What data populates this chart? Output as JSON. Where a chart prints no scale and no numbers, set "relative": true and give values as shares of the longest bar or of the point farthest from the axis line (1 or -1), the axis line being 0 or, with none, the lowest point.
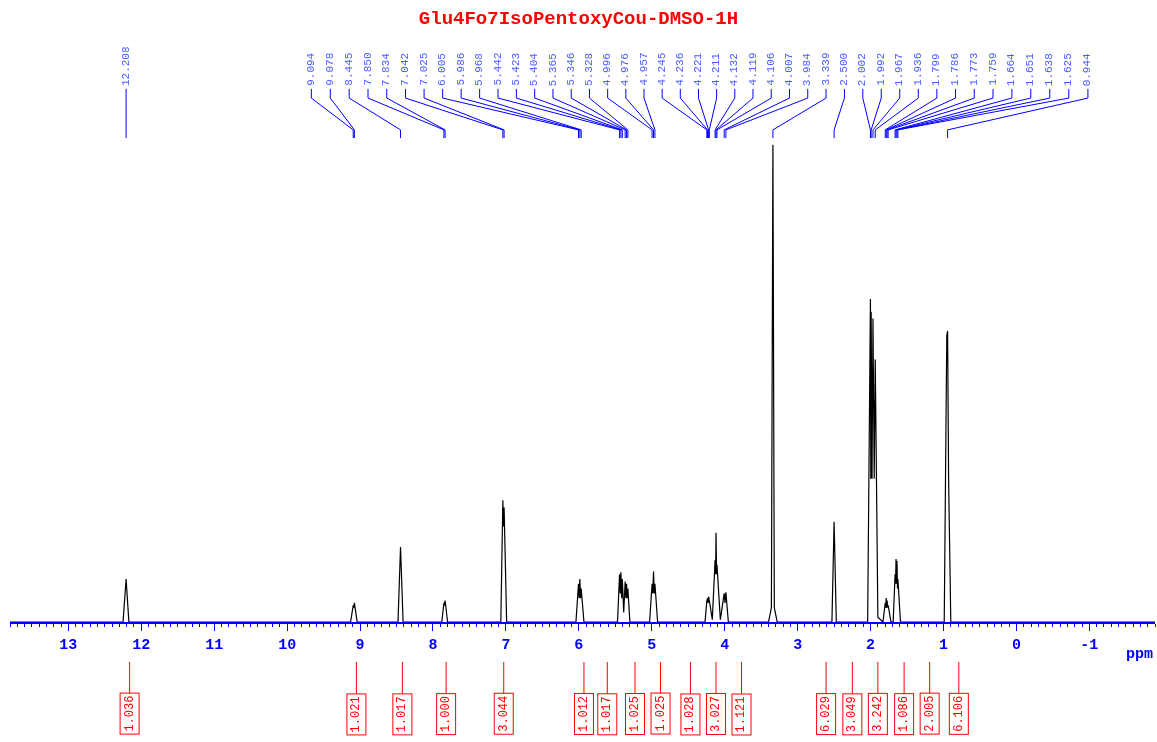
{
  "chart_data": {
    "type": "line",
    "title": "Glu4Fo7IsoPentoxyCou-DMSO-1H",
    "xlabel": "ppm",
    "relative": true,
    "xlim": [
      13.8,
      -1.9
    ],
    "xticks": [
      13,
      12,
      11,
      10,
      9,
      8,
      7,
      6,
      5,
      4,
      3,
      2,
      1,
      0,
      -1
    ],
    "marker": "none",
    "line_style": "solid",
    "series": [
      {
        "color": "#000000",
        "x": [
          13.8,
          12.25,
          12.208,
          12.17,
          9.13,
          9.094,
          9.086,
          9.078,
          9.04,
          8.48,
          8.445,
          8.41,
          7.88,
          7.85,
          7.842,
          7.834,
          7.8,
          7.07,
          7.042,
          7.034,
          7.025,
          6.99,
          6.04,
          6.005,
          5.996,
          5.986,
          5.977,
          5.968,
          5.93,
          5.47,
          5.442,
          5.432,
          5.423,
          5.413,
          5.404,
          5.385,
          5.365,
          5.355,
          5.346,
          5.337,
          5.328,
          5.3,
          5.03,
          4.996,
          4.986,
          4.976,
          4.966,
          4.957,
          4.92,
          4.27,
          4.245,
          4.236,
          4.228,
          4.221,
          4.211,
          4.17,
          4.132,
          4.125,
          4.119,
          4.112,
          4.106,
          4.06,
          4.007,
          3.996,
          3.984,
          3.95,
          3.4,
          3.36,
          3.339,
          3.32,
          3.28,
          2.53,
          2.5,
          2.47,
          2.04,
          2.002,
          1.997,
          1.992,
          1.98,
          1.967,
          1.95,
          1.936,
          1.9,
          1.83,
          1.799,
          1.793,
          1.786,
          1.78,
          1.773,
          1.766,
          1.759,
          1.72,
          1.69,
          1.664,
          1.657,
          1.651,
          1.644,
          1.638,
          1.631,
          1.625,
          1.59,
          0.99,
          0.955,
          0.944,
          0.93,
          0.9,
          -1.9
        ],
        "values": [
          0,
          0,
          0.09,
          0,
          0,
          0.035,
          0.03,
          0.04,
          0,
          0,
          0.157,
          0,
          0,
          0.04,
          0.035,
          0.045,
          0,
          0,
          0.255,
          0.2,
          0.24,
          0,
          0,
          0.08,
          0.05,
          0.09,
          0.05,
          0.07,
          0,
          0,
          0.1,
          0.06,
          0.104,
          0.05,
          0.09,
          0.02,
          0.085,
          0.05,
          0.08,
          0.05,
          0.07,
          0,
          0,
          0.08,
          0.06,
          0.106,
          0.06,
          0.08,
          0,
          0,
          0.045,
          0.05,
          0.04,
          0.053,
          0.045,
          0.005,
          0.13,
          0.1,
          0.187,
          0.1,
          0.12,
          0.005,
          0.06,
          0.04,
          0.062,
          0,
          0,
          0.03,
          1.0,
          0.03,
          0,
          0,
          0.21,
          0,
          0,
          0.677,
          0.3,
          0.65,
          0.3,
          0.636,
          0.3,
          0.55,
          0.01,
          0,
          0.04,
          0.03,
          0.05,
          0.03,
          0.045,
          0.03,
          0.035,
          0,
          0,
          0.1,
          0.08,
          0.132,
          0.08,
          0.128,
          0.07,
          0.09,
          0,
          0,
          0.6,
          0.61,
          0.3,
          0,
          0
        ]
      }
    ],
    "annotations": [
      {
        "text": "12.208",
        "x": 12.208
      },
      {
        "text": "9.094",
        "x": 9.094
      },
      {
        "text": "9.078",
        "x": 9.078
      },
      {
        "text": "8.445",
        "x": 8.445
      },
      {
        "text": "7.850",
        "x": 7.85
      },
      {
        "text": "7.834",
        "x": 7.834
      },
      {
        "text": "7.042",
        "x": 7.042
      },
      {
        "text": "7.025",
        "x": 7.025
      },
      {
        "text": "6.005",
        "x": 6.005
      },
      {
        "text": "5.986",
        "x": 5.986
      },
      {
        "text": "5.968",
        "x": 5.968
      },
      {
        "text": "5.442",
        "x": 5.442
      },
      {
        "text": "5.423",
        "x": 5.423
      },
      {
        "text": "5.404",
        "x": 5.404
      },
      {
        "text": "5.365",
        "x": 5.365
      },
      {
        "text": "5.346",
        "x": 5.346
      },
      {
        "text": "5.328",
        "x": 5.328
      },
      {
        "text": "4.996",
        "x": 4.996
      },
      {
        "text": "4.976",
        "x": 4.976
      },
      {
        "text": "4.957",
        "x": 4.957
      },
      {
        "text": "4.245",
        "x": 4.245
      },
      {
        "text": "4.236",
        "x": 4.236
      },
      {
        "text": "4.221",
        "x": 4.221
      },
      {
        "text": "4.211",
        "x": 4.211
      },
      {
        "text": "4.132",
        "x": 4.132
      },
      {
        "text": "4.119",
        "x": 4.119
      },
      {
        "text": "4.106",
        "x": 4.106
      },
      {
        "text": "4.007",
        "x": 4.007
      },
      {
        "text": "3.984",
        "x": 3.984
      },
      {
        "text": "3.339",
        "x": 3.339
      },
      {
        "text": "2.500",
        "x": 2.5
      },
      {
        "text": "2.002",
        "x": 2.002
      },
      {
        "text": "1.992",
        "x": 1.992
      },
      {
        "text": "1.967",
        "x": 1.967
      },
      {
        "text": "1.936",
        "x": 1.936
      },
      {
        "text": "1.799",
        "x": 1.799
      },
      {
        "text": "1.786",
        "x": 1.786
      },
      {
        "text": "1.773",
        "x": 1.773
      },
      {
        "text": "1.759",
        "x": 1.759
      },
      {
        "text": "1.664",
        "x": 1.664
      },
      {
        "text": "1.651",
        "x": 1.651
      },
      {
        "text": "1.638",
        "x": 1.638
      },
      {
        "text": "1.625",
        "x": 1.625
      },
      {
        "text": "0.944",
        "x": 0.944
      },
      {
        "text": "1.036",
        "x": 12.16,
        "y": 0
      },
      {
        "text": "1.021",
        "x": 9.05,
        "y": 0
      },
      {
        "text": "1.017",
        "x": 8.42,
        "y": 0
      },
      {
        "text": "1.000",
        "x": 7.82,
        "y": 0
      },
      {
        "text": "3.044",
        "x": 7.03,
        "y": 0
      },
      {
        "text": "1.012",
        "x": 5.93,
        "y": 0
      },
      {
        "text": "1.017",
        "x": 5.61,
        "y": 0
      },
      {
        "text": "1.025",
        "x": 5.23,
        "y": 0
      },
      {
        "text": "1.025",
        "x": 4.88,
        "y": 0
      },
      {
        "text": "1.028",
        "x": 4.47,
        "y": 0
      },
      {
        "text": "3.027",
        "x": 4.12,
        "y": 0
      },
      {
        "text": "1.121",
        "x": 3.77,
        "y": 0
      },
      {
        "text": "6.029",
        "x": 2.61,
        "y": 0
      },
      {
        "text": "3.049",
        "x": 2.25,
        "y": 0
      },
      {
        "text": "3.242",
        "x": 1.9,
        "y": 0
      },
      {
        "text": "1.086",
        "x": 1.54,
        "y": 0
      },
      {
        "text": "2.005",
        "x": 1.19,
        "y": 0
      },
      {
        "text": "6.106",
        "x": 0.79,
        "y": 0
      }
    ]
  }
}
